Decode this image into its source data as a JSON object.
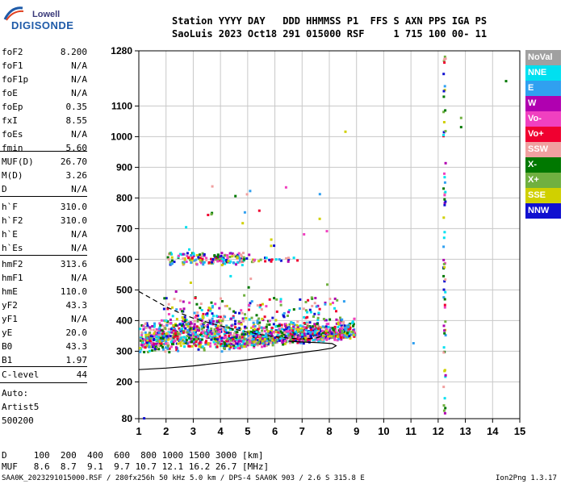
{
  "logo": {
    "top": "Lowell",
    "bottom": "DIGISONDE"
  },
  "header": {
    "line1": "Station YYYY DAY   DDD HHMMSS P1  FFS S AXN PPS IGA PS",
    "line2": "SaoLuis 2023 Oct18 291 015000 RSF     1 715 100 00- 11"
  },
  "params": [
    {
      "label": "foF2",
      "value": "8.200"
    },
    {
      "label": "foF1",
      "value": "N/A"
    },
    {
      "label": "foF1p",
      "value": "N/A"
    },
    {
      "label": "foE",
      "value": "N/A"
    },
    {
      "label": "foEp",
      "value": "0.35"
    },
    {
      "label": "fxI",
      "value": "8.55"
    },
    {
      "label": "foEs",
      "value": "N/A"
    },
    {
      "label": "fmin",
      "value": "5.60"
    },
    {
      "label": "MUF(D)",
      "value": "26.70"
    },
    {
      "label": "M(D)",
      "value": "3.26"
    },
    {
      "label": "D",
      "value": "N/A"
    },
    {
      "label": "h`F",
      "value": "310.0"
    },
    {
      "label": "h`F2",
      "value": "310.0"
    },
    {
      "label": "h`E",
      "value": "N/A"
    },
    {
      "label": "h`Es",
      "value": "N/A"
    },
    {
      "label": "hmF2",
      "value": "313.6"
    },
    {
      "label": "hmF1",
      "value": "N/A"
    },
    {
      "label": "hmE",
      "value": "110.0"
    },
    {
      "label": "yF2",
      "value": "43.3"
    },
    {
      "label": "yF1",
      "value": "N/A"
    },
    {
      "label": "yE",
      "value": "20.0"
    },
    {
      "label": "B0",
      "value": "43.3"
    },
    {
      "label": "B1",
      "value": "1.97"
    },
    {
      "label": "C-level",
      "value": "44"
    }
  ],
  "auto": {
    "line1": "Auto:",
    "line2": "Artist5",
    "line3": "500200"
  },
  "legend": [
    {
      "label": "NoVal",
      "color": "#a0a0a0"
    },
    {
      "label": "NNE",
      "color": "#00e0f0"
    },
    {
      "label": "E",
      "color": "#30a0f0"
    },
    {
      "label": "W",
      "color": "#b000b0"
    },
    {
      "label": "Vo-",
      "color": "#f040c0"
    },
    {
      "label": "Vo+",
      "color": "#f00030"
    },
    {
      "label": "SSW",
      "color": "#f0a0a0"
    },
    {
      "label": "X-",
      "color": "#007800"
    },
    {
      "label": "X+",
      "color": "#70b040"
    },
    {
      "label": "SSE",
      "color": "#d0d000"
    },
    {
      "label": "NNW",
      "color": "#1010d0"
    }
  ],
  "footer": {
    "d_line": "D     100  200  400  600  800 1000 1500 3000 [km]",
    "muf_line": "MUF   8.6  8.7  9.1  9.7 10.7 12.1 16.2 26.7 [MHz]",
    "file_line": "SAA0K_2023291015000.RSF / 280fx256h 50 kHz 5.0 km / DPS-4 SAA0K 903 / 2.6 S 315.8 E",
    "version": "Ion2Png 1.3.17"
  },
  "chart_data": {
    "type": "scatter",
    "title": "",
    "xlabel": "",
    "ylabel": "",
    "xlim": [
      1,
      15
    ],
    "ylim": [
      80,
      1280
    ],
    "x_ticks": [
      1,
      2,
      3,
      4,
      5,
      6,
      7,
      8,
      9,
      10,
      11,
      12,
      13,
      14,
      15
    ],
    "y_ticks": [
      80,
      200,
      300,
      400,
      500,
      600,
      700,
      800,
      900,
      1000,
      1100,
      1280
    ],
    "grid": true,
    "legend_position": "right",
    "traces": [
      {
        "name": "O-trace",
        "style": "dashed",
        "points": [
          [
            1.0,
            495
          ],
          [
            1.5,
            470
          ],
          [
            2.0,
            445
          ],
          [
            2.5,
            425
          ],
          [
            3.0,
            408
          ],
          [
            3.5,
            395
          ],
          [
            4.0,
            383
          ],
          [
            4.5,
            372
          ],
          [
            5.0,
            362
          ],
          [
            5.5,
            354
          ],
          [
            6.0,
            348
          ],
          [
            6.5,
            343
          ],
          [
            7.0,
            340
          ],
          [
            7.5,
            343
          ],
          [
            7.8,
            350
          ]
        ]
      },
      {
        "name": "profile",
        "style": "solid",
        "points": [
          [
            1.0,
            240
          ],
          [
            2.0,
            245
          ],
          [
            3.0,
            252
          ],
          [
            4.0,
            262
          ],
          [
            5.0,
            272
          ],
          [
            6.0,
            284
          ],
          [
            7.0,
            296
          ],
          [
            7.6,
            303
          ],
          [
            8.1,
            310
          ],
          [
            8.25,
            318
          ],
          [
            8.1,
            325
          ],
          [
            7.6,
            328
          ],
          [
            7.0,
            330
          ],
          [
            6.5,
            333
          ]
        ]
      }
    ],
    "echo_regions": [
      {
        "region": "F-main",
        "x_range": [
          1.0,
          9.0
        ],
        "h_range": [
          270,
          430
        ]
      },
      {
        "region": "multi-hop",
        "x_range": [
          2.0,
          6.5
        ],
        "h_range": [
          580,
          630
        ]
      },
      {
        "region": "interference-12.2MHz",
        "x_range": [
          12.1,
          12.3
        ],
        "h_range": [
          80,
          1280
        ]
      }
    ]
  }
}
